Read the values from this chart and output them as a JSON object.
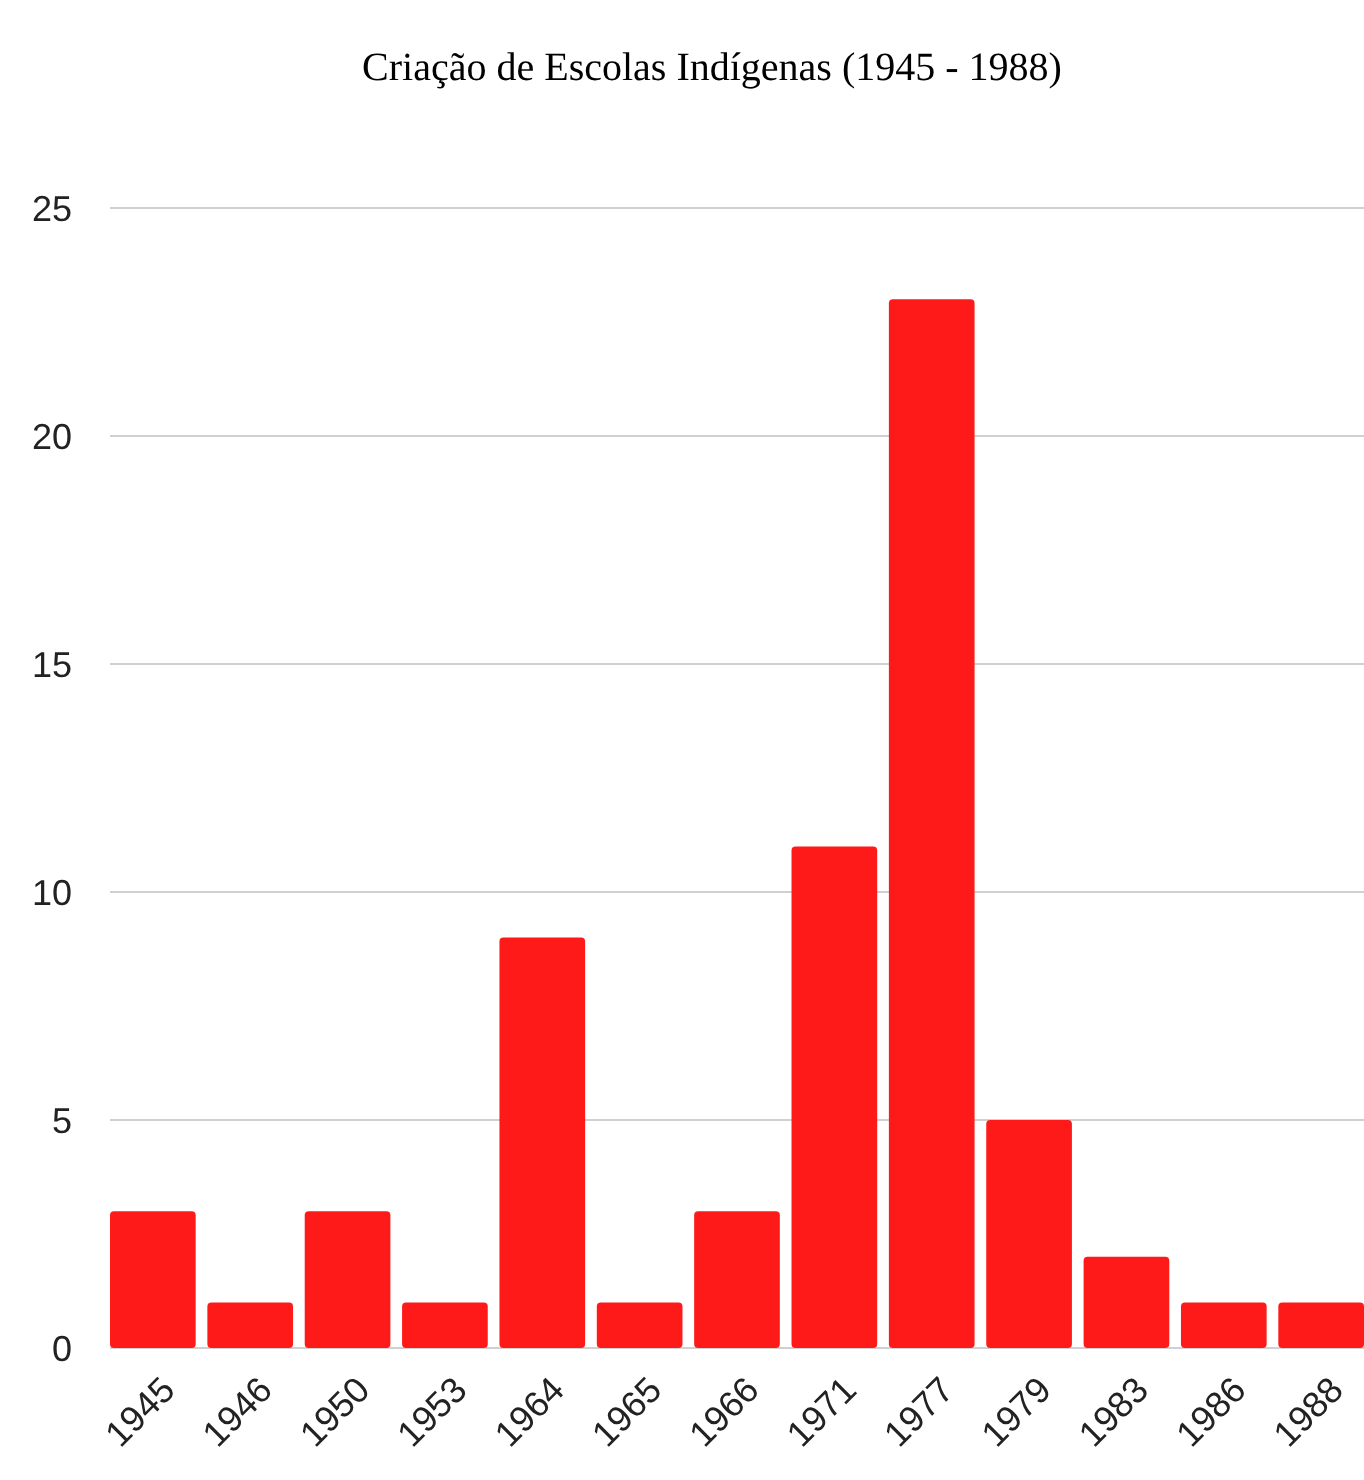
{
  "chart_data": {
    "type": "bar",
    "title": "Criação de Escolas Indígenas (1945 - 1988)",
    "categories": [
      "1945",
      "1946",
      "1950",
      "1953",
      "1964",
      "1965",
      "1966",
      "1971",
      "1977",
      "1979",
      "1983",
      "1986",
      "1988"
    ],
    "values": [
      3,
      1,
      3,
      1,
      9,
      1,
      3,
      11,
      23,
      5,
      2,
      1,
      1
    ],
    "color": "#ff1a1a",
    "ylim": [
      0,
      25
    ],
    "yticks": [
      0,
      5,
      10,
      15,
      20,
      25
    ],
    "grid": "y"
  }
}
